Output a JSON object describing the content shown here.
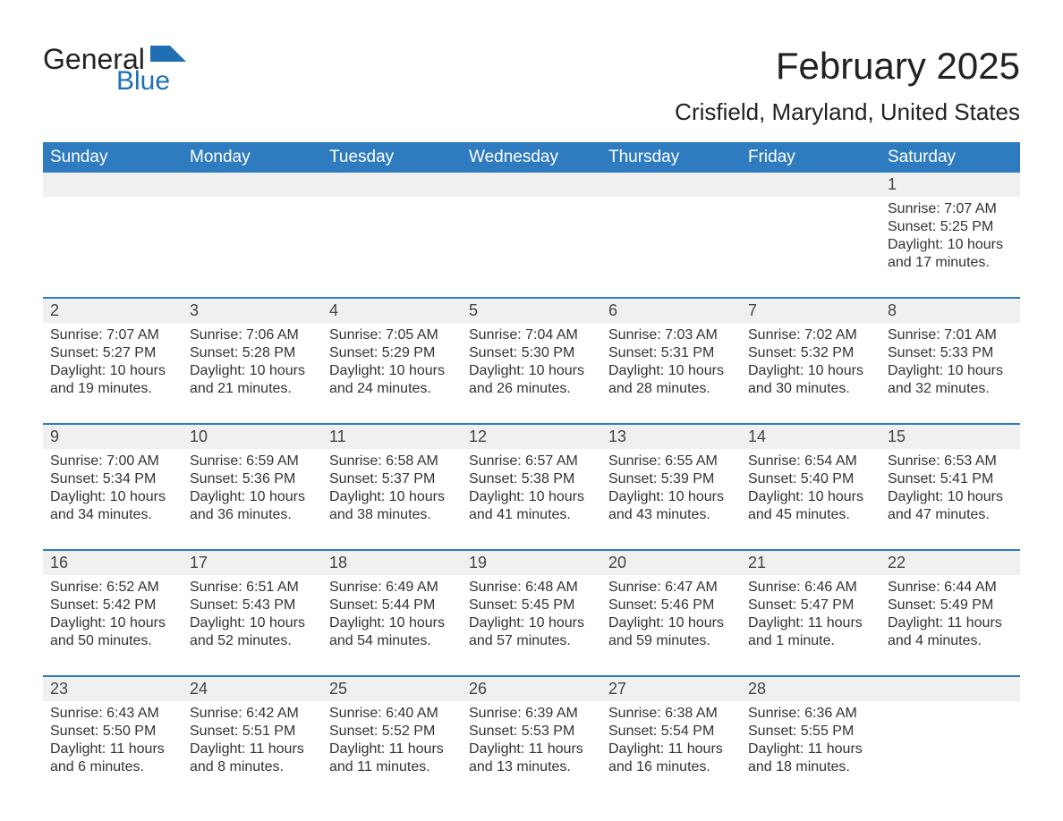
{
  "logo": {
    "word1": "General",
    "word2": "Blue",
    "flag_color": "#1f6fb2"
  },
  "title": "February 2025",
  "location": "Crisfield, Maryland, United States",
  "colors": {
    "header_bg": "#2f7bbf",
    "header_text": "#ffffff",
    "daynum_bg": "#f0f0f0",
    "row_border": "#2f7bbf",
    "text": "#333333"
  },
  "day_headers": [
    "Sunday",
    "Monday",
    "Tuesday",
    "Wednesday",
    "Thursday",
    "Friday",
    "Saturday"
  ],
  "weeks": [
    [
      null,
      null,
      null,
      null,
      null,
      null,
      {
        "n": "1",
        "sr": "7:07 AM",
        "ss": "5:25 PM",
        "dl": "10 hours and 17 minutes."
      }
    ],
    [
      {
        "n": "2",
        "sr": "7:07 AM",
        "ss": "5:27 PM",
        "dl": "10 hours and 19 minutes."
      },
      {
        "n": "3",
        "sr": "7:06 AM",
        "ss": "5:28 PM",
        "dl": "10 hours and 21 minutes."
      },
      {
        "n": "4",
        "sr": "7:05 AM",
        "ss": "5:29 PM",
        "dl": "10 hours and 24 minutes."
      },
      {
        "n": "5",
        "sr": "7:04 AM",
        "ss": "5:30 PM",
        "dl": "10 hours and 26 minutes."
      },
      {
        "n": "6",
        "sr": "7:03 AM",
        "ss": "5:31 PM",
        "dl": "10 hours and 28 minutes."
      },
      {
        "n": "7",
        "sr": "7:02 AM",
        "ss": "5:32 PM",
        "dl": "10 hours and 30 minutes."
      },
      {
        "n": "8",
        "sr": "7:01 AM",
        "ss": "5:33 PM",
        "dl": "10 hours and 32 minutes."
      }
    ],
    [
      {
        "n": "9",
        "sr": "7:00 AM",
        "ss": "5:34 PM",
        "dl": "10 hours and 34 minutes."
      },
      {
        "n": "10",
        "sr": "6:59 AM",
        "ss": "5:36 PM",
        "dl": "10 hours and 36 minutes."
      },
      {
        "n": "11",
        "sr": "6:58 AM",
        "ss": "5:37 PM",
        "dl": "10 hours and 38 minutes."
      },
      {
        "n": "12",
        "sr": "6:57 AM",
        "ss": "5:38 PM",
        "dl": "10 hours and 41 minutes."
      },
      {
        "n": "13",
        "sr": "6:55 AM",
        "ss": "5:39 PM",
        "dl": "10 hours and 43 minutes."
      },
      {
        "n": "14",
        "sr": "6:54 AM",
        "ss": "5:40 PM",
        "dl": "10 hours and 45 minutes."
      },
      {
        "n": "15",
        "sr": "6:53 AM",
        "ss": "5:41 PM",
        "dl": "10 hours and 47 minutes."
      }
    ],
    [
      {
        "n": "16",
        "sr": "6:52 AM",
        "ss": "5:42 PM",
        "dl": "10 hours and 50 minutes."
      },
      {
        "n": "17",
        "sr": "6:51 AM",
        "ss": "5:43 PM",
        "dl": "10 hours and 52 minutes."
      },
      {
        "n": "18",
        "sr": "6:49 AM",
        "ss": "5:44 PM",
        "dl": "10 hours and 54 minutes."
      },
      {
        "n": "19",
        "sr": "6:48 AM",
        "ss": "5:45 PM",
        "dl": "10 hours and 57 minutes."
      },
      {
        "n": "20",
        "sr": "6:47 AM",
        "ss": "5:46 PM",
        "dl": "10 hours and 59 minutes."
      },
      {
        "n": "21",
        "sr": "6:46 AM",
        "ss": "5:47 PM",
        "dl": "11 hours and 1 minute."
      },
      {
        "n": "22",
        "sr": "6:44 AM",
        "ss": "5:49 PM",
        "dl": "11 hours and 4 minutes."
      }
    ],
    [
      {
        "n": "23",
        "sr": "6:43 AM",
        "ss": "5:50 PM",
        "dl": "11 hours and 6 minutes."
      },
      {
        "n": "24",
        "sr": "6:42 AM",
        "ss": "5:51 PM",
        "dl": "11 hours and 8 minutes."
      },
      {
        "n": "25",
        "sr": "6:40 AM",
        "ss": "5:52 PM",
        "dl": "11 hours and 11 minutes."
      },
      {
        "n": "26",
        "sr": "6:39 AM",
        "ss": "5:53 PM",
        "dl": "11 hours and 13 minutes."
      },
      {
        "n": "27",
        "sr": "6:38 AM",
        "ss": "5:54 PM",
        "dl": "11 hours and 16 minutes."
      },
      {
        "n": "28",
        "sr": "6:36 AM",
        "ss": "5:55 PM",
        "dl": "11 hours and 18 minutes."
      },
      null
    ]
  ],
  "labels": {
    "sunrise": "Sunrise: ",
    "sunset": "Sunset: ",
    "daylight": "Daylight: "
  }
}
